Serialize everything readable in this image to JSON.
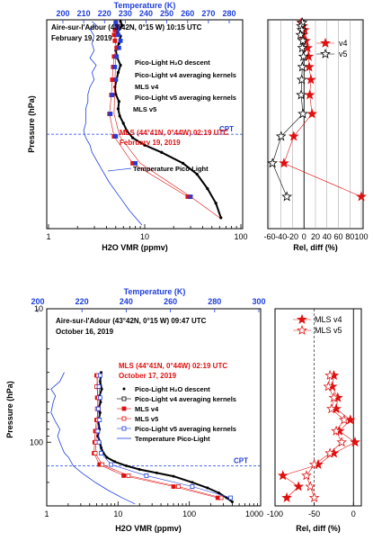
{
  "colors": {
    "black": "#000000",
    "red": "#e01010",
    "blue": "#1f3fdc"
  },
  "chart_data": [
    {
      "type": "line",
      "panel": "top-left",
      "xlabel": "H2O VMR (ppmv)",
      "ylabel": "Pressure (hPa)",
      "top_axis_label": "Temperature (K)",
      "x_scale": "log",
      "xlim": [
        1,
        100
      ],
      "x_tick_labels": [
        "1",
        "10",
        "100"
      ],
      "top_xlim": [
        200,
        280
      ],
      "top_tick_labels": [
        "200",
        "210",
        "220",
        "230",
        "240",
        "250",
        "260",
        "270",
        "280"
      ],
      "ylim": [
        20,
        300
      ],
      "site_text": "Aire-sur-l'Adour (43°42N, 0°15 W)  10:15 UTC",
      "site_date": "February 19, 2019",
      "mls_text": "MLS (44°41N, 0°44W)  02:19 UTC",
      "mls_date": "February 19, 2019",
      "cpt_label": "CPT",
      "cpt_pressure": 175,
      "annotations": [
        {
          "text": "Pico-Light H₂O descent"
        },
        {
          "text": "Pico-Light v4 averaging kernels"
        },
        {
          "text": "MLS v4"
        },
        {
          "text": "Pico-Light v5 averaging kernels"
        },
        {
          "text": "MLS v5"
        },
        {
          "text": "Temperature Pico-Light"
        }
      ],
      "series": [
        {
          "name": "Pico-Light H₂O descent",
          "color": "#000000",
          "style": "dots",
          "p": [
            20,
            25,
            30,
            35,
            40,
            50,
            60,
            70,
            80,
            90,
            100,
            110,
            120,
            130,
            140,
            150,
            160,
            170,
            180,
            190,
            200,
            215,
            230,
            250,
            270,
            290
          ],
          "x": [
            5.6,
            5.8,
            5.5,
            5.2,
            5.6,
            5.4,
            5.0,
            5.2,
            5.6,
            5.3,
            5.1,
            4.9,
            5.0,
            5.4,
            5.3,
            5.5,
            6.0,
            6.5,
            7.5,
            10,
            15,
            25,
            35,
            45,
            55,
            62
          ]
        },
        {
          "name": "MLS v4",
          "color": "#e01010",
          "style": "squares-line",
          "p": [
            21.5,
            26.1,
            31.6,
            38.3,
            46.4,
            56.2,
            68.1,
            82.5,
            100,
            121,
            147,
            178,
            215,
            261
          ],
          "x": [
            5.0,
            5.2,
            4.9,
            4.8,
            4.9,
            5.1,
            4.8,
            4.7,
            4.6,
            4.5,
            4.3,
            4.8,
            7.5,
            28
          ]
        },
        {
          "name": "MLS v5",
          "color": "#1f3fdc",
          "style": "squares",
          "p": [
            21.5,
            26.1,
            31.6,
            38.3,
            46.4,
            56.2,
            68.1,
            82.5,
            100,
            121,
            147,
            178,
            215,
            261
          ],
          "x": [
            5.0,
            5.1,
            5.2,
            5.3,
            5.6,
            5.4,
            5.1,
            4.9,
            5.0,
            4.6,
            4.4,
            5.0,
            8.0,
            30
          ]
        },
        {
          "name": "Pico-Light averaging kernels",
          "color": "#e01010",
          "style": "thin-line",
          "p": [
            21.5,
            38.3,
            68.1,
            100,
            147,
            178,
            215,
            261,
            290
          ],
          "x": [
            5.2,
            5.0,
            5.0,
            4.9,
            4.8,
            5.5,
            9,
            30,
            60
          ]
        },
        {
          "name": "Temperature Pico-Light",
          "color": "#1f3fdc",
          "style": "thin-line",
          "axis": "top",
          "p": [
            20,
            25,
            30,
            40,
            50,
            60,
            70,
            80,
            90,
            100,
            110,
            120,
            130,
            140,
            150,
            160,
            170,
            180,
            190,
            200,
            220,
            240,
            260,
            280,
            300
          ],
          "t": [
            214,
            216,
            213,
            215,
            214,
            215,
            213,
            216,
            214,
            215,
            213,
            212,
            212,
            211,
            211,
            211,
            210,
            211,
            213,
            214,
            218,
            222,
            227,
            232,
            238
          ]
        }
      ]
    },
    {
      "type": "line",
      "panel": "top-right",
      "xlabel": "Rel, diff (%)",
      "xlim": [
        -60,
        100
      ],
      "x_tick_labels": [
        "-60",
        "-40",
        "-20",
        "0",
        "20",
        "40",
        "60",
        "80",
        "100"
      ],
      "ylim": [
        20,
        300
      ],
      "legend_position": "top-right",
      "series": [
        {
          "name": "v4",
          "color": "#e01010",
          "marker": "filled-star",
          "p": [
            21.5,
            26.1,
            31.6,
            38.3,
            46.4,
            56.2,
            68.1,
            82.5,
            100,
            121,
            147,
            178,
            215,
            261
          ],
          "x": [
            -5,
            -2,
            1,
            -2,
            3,
            6,
            8,
            9,
            12,
            10,
            14,
            -18,
            -35,
            100
          ]
        },
        {
          "name": "v5",
          "color": "#000000",
          "marker": "open-star",
          "p": [
            21.5,
            26.1,
            31.6,
            38.3,
            46.4,
            56.2,
            68.1,
            82.5,
            100,
            121,
            147,
            178,
            215,
            261
          ],
          "x": [
            -3,
            -5,
            -4,
            -6,
            -2,
            -3,
            -1,
            -3,
            -4,
            -5,
            -2,
            -40,
            -55,
            -30
          ]
        }
      ]
    },
    {
      "type": "line",
      "panel": "bottom-left",
      "xlabel": "H2O VMR (ppmv)",
      "ylabel": "Pressure (hPa)",
      "top_axis_label": "Temperature (K)",
      "x_scale": "log",
      "xlim": [
        1,
        1000
      ],
      "x_tick_labels": [
        "1",
        "10",
        "100",
        "1000"
      ],
      "y_scale": "log",
      "ylim": [
        10,
        300
      ],
      "y_tick_labels": [
        "10",
        "100"
      ],
      "top_xlim": [
        200,
        300
      ],
      "top_tick_labels": [
        "200",
        "220",
        "240",
        "260",
        "280",
        "300"
      ],
      "site_text": "Aire-sur-l'Adour (43°42N, 0°15 W)  09:47 UTC",
      "site_date": "October 16, 2019",
      "mls_text": "MLS (44°41N, 0°44W)  02:19 UTC",
      "mls_date": "October 17, 2019",
      "cpt_label": "CPT",
      "cpt_pressure": 150,
      "legend": [
        {
          "text": "Pico-Light H₂O descent"
        },
        {
          "text": "Pico-Light v4 averaging kernels"
        },
        {
          "text": "MLS v4"
        },
        {
          "text": "MLS v5"
        },
        {
          "text": "Pico-Light v5 averaging kernels"
        },
        {
          "text": "Temperature Pico-Light"
        }
      ],
      "series": [
        {
          "name": "Pico-Light H₂O descent",
          "color": "#000000",
          "style": "dots",
          "p": [
            30,
            35,
            40,
            45,
            50,
            55,
            60,
            70,
            80,
            90,
            100,
            110,
            120,
            130,
            140,
            150,
            160,
            170,
            180,
            200,
            220,
            240,
            260,
            280
          ],
          "x": [
            5.8,
            5.6,
            5.9,
            5.5,
            5.7,
            5.4,
            5.6,
            5.3,
            5.5,
            5.2,
            5.6,
            5.8,
            6.2,
            7.0,
            9,
            13,
            20,
            35,
            60,
            110,
            180,
            260,
            330,
            400
          ]
        },
        {
          "name": "MLS v4",
          "color": "#e01010",
          "style": "squares-line",
          "p": [
            31.6,
            38.3,
            46.4,
            56.2,
            68.1,
            82.5,
            100,
            121,
            147,
            178,
            215,
            261
          ],
          "x": [
            5.0,
            5.2,
            5.1,
            5.3,
            5.0,
            4.8,
            4.7,
            4.6,
            5.5,
            12,
            60,
            250
          ]
        },
        {
          "name": "MLS v5",
          "color": "#e01010",
          "style": "open-squares-line",
          "p": [
            31.6,
            38.3,
            46.4,
            56.2,
            68.1,
            82.5,
            100,
            121,
            147,
            178,
            215,
            261
          ],
          "x": [
            5.2,
            5.0,
            5.3,
            5.1,
            5.2,
            5.0,
            4.9,
            4.8,
            6.0,
            14,
            70,
            280
          ]
        },
        {
          "name": "Pico-Light averaging kernels",
          "color": "#1f3fdc",
          "style": "open-squares-line",
          "p": [
            31.6,
            38.3,
            46.4,
            56.2,
            68.1,
            82.5,
            100,
            121,
            147,
            178,
            215,
            261
          ],
          "x": [
            5.6,
            5.4,
            5.6,
            5.3,
            5.5,
            5.2,
            5.4,
            5.8,
            8,
            25,
            110,
            380
          ]
        },
        {
          "name": "Temperature Pico-Light",
          "color": "#1f3fdc",
          "style": "thin-line",
          "axis": "top",
          "p": [
            30,
            35,
            40,
            45,
            50,
            60,
            70,
            80,
            90,
            100,
            110,
            120,
            130,
            150,
            170,
            200,
            230,
            260,
            290
          ],
          "t": [
            212,
            210,
            206,
            208,
            207,
            206,
            208,
            210,
            209,
            210,
            211,
            212,
            214,
            216,
            220,
            226,
            232,
            238,
            244
          ]
        }
      ]
    },
    {
      "type": "line",
      "panel": "bottom-right",
      "xlabel": "Rel, diff (%)",
      "xlim": [
        -100,
        10
      ],
      "x_tick_labels": [
        "-100",
        "-50",
        "0"
      ],
      "y_scale": "log",
      "ylim": [
        10,
        300
      ],
      "legend_position": "top-right",
      "series": [
        {
          "name": "MLS v4",
          "color": "#e01010",
          "marker": "filled-star",
          "p": [
            31.6,
            38.3,
            46.4,
            56.2,
            68.1,
            82.5,
            100,
            121,
            147,
            178,
            215,
            261
          ],
          "x": [
            -25,
            -27,
            -20,
            -22,
            -4,
            -18,
            2,
            -25,
            -45,
            -90,
            -70,
            -85
          ]
        },
        {
          "name": "MLS v5",
          "color": "#e01010",
          "marker": "open-star",
          "p": [
            31.6,
            38.3,
            46.4,
            56.2,
            68.1,
            82.5,
            100,
            121,
            147,
            178,
            215,
            261
          ],
          "x": [
            -30,
            -32,
            -25,
            -28,
            -12,
            -22,
            -15,
            -30,
            -50,
            -60,
            -55,
            -50
          ]
        }
      ]
    }
  ]
}
